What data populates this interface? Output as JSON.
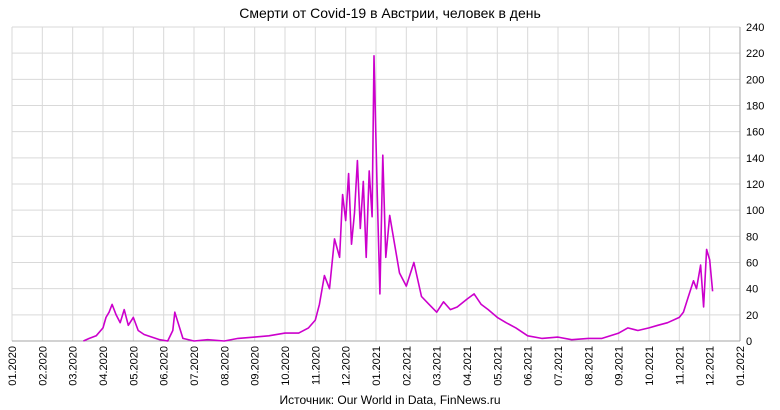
{
  "chart_data": {
    "type": "line",
    "title": "Смерти от Covid-19 в Австрии, человек в день",
    "source": "Источник: Our World in Data, FinNews.ru",
    "xlabel": "",
    "ylabel": "",
    "y_axis_side": "right",
    "ylim": [
      0,
      240
    ],
    "y_ticks": [
      "0",
      "20",
      "40",
      "60",
      "80",
      "100",
      "120",
      "140",
      "160",
      "180",
      "200",
      "220",
      "240"
    ],
    "x_ticks": [
      "01.2020",
      "02.2020",
      "03.2020",
      "04.2020",
      "05.2020",
      "06.2020",
      "07.2020",
      "08.2020",
      "09.2020",
      "10.2020",
      "11.2020",
      "12.2020",
      "01.2021",
      "02.2021",
      "03.2021",
      "04.2021",
      "05.2021",
      "06.2021",
      "07.2021",
      "08.2021",
      "09.2021",
      "10.2021",
      "11.2021",
      "12.2021",
      "01.2022"
    ],
    "grid": true,
    "series_color": "#cc00cc",
    "series": [
      {
        "x": [
          "2020-03-12",
          "2020-03-18",
          "2020-03-25",
          "2020-04-01",
          "2020-04-04",
          "2020-04-07",
          "2020-04-10",
          "2020-04-14",
          "2020-04-18",
          "2020-04-22",
          "2020-04-26",
          "2020-05-01",
          "2020-05-06",
          "2020-05-12",
          "2020-05-20",
          "2020-05-28",
          "2020-06-05",
          "2020-06-10",
          "2020-06-12",
          "2020-06-20",
          "2020-07-01",
          "2020-07-15",
          "2020-08-01",
          "2020-08-15",
          "2020-09-01",
          "2020-09-15",
          "2020-10-01",
          "2020-10-15",
          "2020-10-25",
          "2020-11-01",
          "2020-11-05",
          "2020-11-10",
          "2020-11-15",
          "2020-11-20",
          "2020-11-25",
          "2020-11-28",
          "2020-12-01",
          "2020-12-04",
          "2020-12-07",
          "2020-12-10",
          "2020-12-13",
          "2020-12-16",
          "2020-12-19",
          "2020-12-22",
          "2020-12-25",
          "2020-12-28",
          "2020-12-30",
          "2021-01-02",
          "2021-01-05",
          "2021-01-08",
          "2021-01-11",
          "2021-01-15",
          "2021-01-20",
          "2021-01-25",
          "2021-02-01",
          "2021-02-08",
          "2021-02-15",
          "2021-02-22",
          "2021-03-01",
          "2021-03-08",
          "2021-03-15",
          "2021-03-22",
          "2021-04-01",
          "2021-04-08",
          "2021-04-15",
          "2021-04-22",
          "2021-05-01",
          "2021-05-10",
          "2021-05-20",
          "2021-06-01",
          "2021-06-15",
          "2021-07-01",
          "2021-07-15",
          "2021-08-01",
          "2021-08-15",
          "2021-09-01",
          "2021-09-10",
          "2021-09-20",
          "2021-10-01",
          "2021-10-10",
          "2021-10-20",
          "2021-11-01",
          "2021-11-05",
          "2021-11-10",
          "2021-11-15",
          "2021-11-18",
          "2021-11-22",
          "2021-11-25",
          "2021-11-28",
          "2021-12-01",
          "2021-12-04"
        ],
        "values": [
          0,
          2,
          4,
          10,
          18,
          22,
          28,
          20,
          14,
          24,
          12,
          18,
          8,
          5,
          3,
          1,
          0,
          8,
          22,
          2,
          0,
          1,
          0,
          2,
          3,
          4,
          6,
          6,
          10,
          16,
          28,
          50,
          40,
          78,
          64,
          112,
          92,
          128,
          74,
          98,
          138,
          86,
          122,
          64,
          130,
          95,
          218,
          120,
          36,
          142,
          64,
          96,
          74,
          52,
          42,
          60,
          34,
          28,
          22,
          30,
          24,
          26,
          32,
          36,
          28,
          24,
          18,
          14,
          10,
          4,
          2,
          3,
          1,
          2,
          2,
          6,
          10,
          8,
          10,
          12,
          14,
          18,
          22,
          34,
          46,
          40,
          58,
          26,
          70,
          62,
          38
        ]
      }
    ]
  }
}
